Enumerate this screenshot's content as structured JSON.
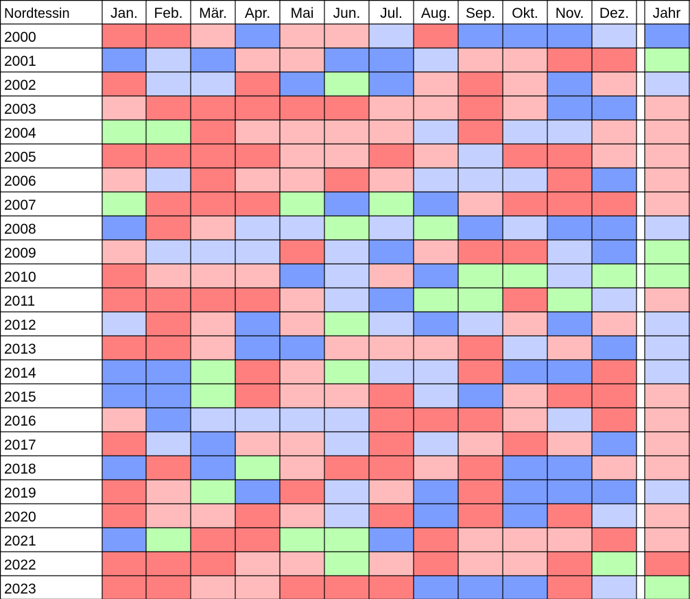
{
  "chart_data": {
    "type": "heatmap",
    "corner_label": "Nordtessin",
    "months": [
      "Jan.",
      "Feb.",
      "Mär.",
      "Apr.",
      "Mai",
      "Jun.",
      "Jul.",
      "Aug.",
      "Sep.",
      "Okt.",
      "Nov.",
      "Dez."
    ],
    "year_column_label": "Jahr",
    "legend_key": {
      "R": "#ff7f7f",
      "r": "#ffbbbb",
      "b": "#c4d0ff",
      "B": "#7b9dff",
      "g": "#bbffb0"
    },
    "rows": [
      {
        "year": "2000",
        "months": "RRrBrrbRBBBb",
        "annual": "B"
      },
      {
        "year": "2001",
        "months": "BbBrrBBbrrRR",
        "annual": "g"
      },
      {
        "year": "2002",
        "months": "RbbRBgBrRrBr",
        "annual": "b"
      },
      {
        "year": "2003",
        "months": "rRRRRRrrRrBB",
        "annual": "r"
      },
      {
        "year": "2004",
        "months": "ggRrrrrbRbbr",
        "annual": "r"
      },
      {
        "year": "2005",
        "months": "RRRRrrRrbRRr",
        "annual": "r"
      },
      {
        "year": "2006",
        "months": "rbRrrRrbbbRB",
        "annual": "r"
      },
      {
        "year": "2007",
        "months": "gRRRgBgBrRRR",
        "annual": "r"
      },
      {
        "year": "2008",
        "months": "BRrbbgbgBbBB",
        "annual": "b"
      },
      {
        "year": "2009",
        "months": "rbbbRbBrRRbB",
        "annual": "g"
      },
      {
        "year": "2010",
        "months": "RrrrBbrBggbg",
        "annual": "g"
      },
      {
        "year": "2011",
        "months": "RRRRrbBggRgb",
        "annual": "r"
      },
      {
        "year": "2012",
        "months": "bRrBrgbBbrBr",
        "annual": "b"
      },
      {
        "year": "2013",
        "months": "RRrBBrrrRbrB",
        "annual": "b"
      },
      {
        "year": "2014",
        "months": "BBgRrgbbRBBR",
        "annual": "b"
      },
      {
        "year": "2015",
        "months": "BBgRrrRbBrRR",
        "annual": "r"
      },
      {
        "year": "2016",
        "months": "rBbbbbRRRrbR",
        "annual": "r"
      },
      {
        "year": "2017",
        "months": "RbBrrbRbrRrB",
        "annual": "r"
      },
      {
        "year": "2018",
        "months": "BRBgrRRrRBBr",
        "annual": "r"
      },
      {
        "year": "2019",
        "months": "RrgBRbrBRBBB",
        "annual": "b"
      },
      {
        "year": "2020",
        "months": "RrrRrbRBRBRb",
        "annual": "r"
      },
      {
        "year": "2021",
        "months": "BgRRggBRrrrR",
        "annual": "r"
      },
      {
        "year": "2022",
        "months": "RRRrrgrRrrRg",
        "annual": "R"
      },
      {
        "year": "2023",
        "months": "RRrrRRRBBBRb",
        "annual": "g"
      }
    ]
  }
}
